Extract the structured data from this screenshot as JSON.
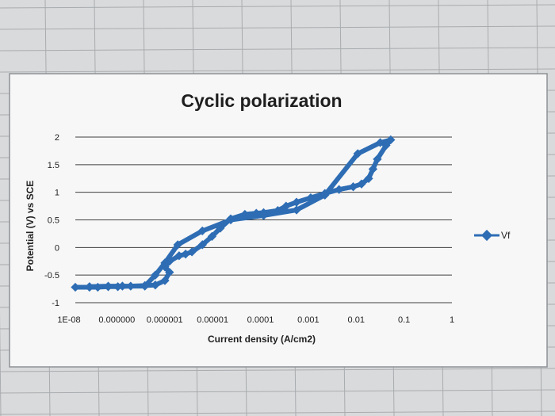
{
  "chart_data": {
    "type": "scatter",
    "title": "Cyclic polarization",
    "xlabel": "Current density (A/cm2)",
    "ylabel": "Potential (V) vs SCE",
    "x_scale": "log",
    "xlim": [
      1e-08,
      1
    ],
    "ylim": [
      -1,
      2
    ],
    "x_tick_labels": [
      "1E-08",
      "0.000000",
      "0.000001",
      "0.00001",
      "0.0001",
      "0.001",
      "0.01",
      "0.1",
      "1"
    ],
    "y_ticks": [
      2,
      1.5,
      1,
      0.5,
      0,
      -0.5,
      -1
    ],
    "y_tick_labels": [
      "2",
      "1.5",
      "1",
      "0.5",
      "0",
      "-0.5",
      "-1"
    ],
    "grid": true,
    "legend": "right",
    "series": [
      {
        "name": "Vf",
        "color": "#2e6db4",
        "marker": "diamond",
        "x": [
          1e-08,
          2e-08,
          3e-08,
          5e-08,
          8e-08,
          1.5e-07,
          3e-07,
          5e-07,
          8e-07,
          1e-06,
          8e-07,
          1e-06,
          1.6e-06,
          2.2e-06,
          3e-06,
          5e-06,
          8e-06,
          1.2e-05,
          2e-05,
          4e-05,
          7e-05,
          0.0001,
          0.0002,
          0.0003,
          0.0005,
          0.001,
          0.002,
          0.004,
          0.008,
          0.012,
          0.017,
          0.021,
          0.026,
          0.04,
          0.05,
          0.03,
          0.01,
          0.002,
          0.0005,
          0.0001,
          2e-05,
          5e-06,
          1.5e-06,
          8e-07,
          5e-07,
          3e-07,
          1e-07,
          5e-08,
          2e-08
        ],
        "y": [
          -0.72,
          -0.72,
          -0.72,
          -0.71,
          -0.71,
          -0.7,
          -0.69,
          -0.68,
          -0.6,
          -0.45,
          -0.35,
          -0.25,
          -0.15,
          -0.12,
          -0.08,
          0.05,
          0.2,
          0.35,
          0.52,
          0.6,
          0.62,
          0.63,
          0.67,
          0.75,
          0.82,
          0.9,
          0.98,
          1.05,
          1.1,
          1.15,
          1.25,
          1.42,
          1.6,
          1.85,
          1.95,
          1.9,
          1.7,
          0.95,
          0.68,
          0.58,
          0.5,
          0.3,
          0.05,
          -0.28,
          -0.5,
          -0.7,
          -0.7,
          -0.7,
          -0.71
        ]
      }
    ]
  }
}
